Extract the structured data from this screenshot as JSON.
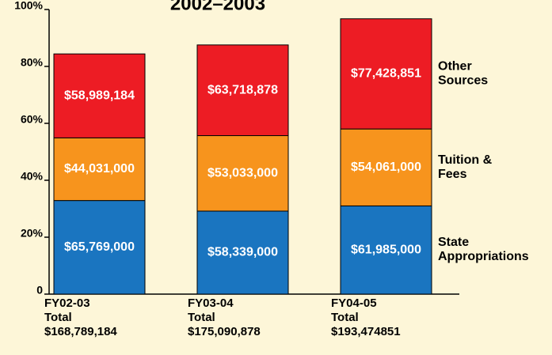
{
  "chart_data": {
    "type": "stacked_bar",
    "title": "2002–2003",
    "categories": [
      "FY02-03",
      "FY03-04",
      "FY04-05"
    ],
    "category_sublabels": [
      "Total",
      "Total",
      "Total"
    ],
    "total_labels": [
      "$168,789,184",
      "$175,090,878",
      "$193,474851"
    ],
    "series": [
      {
        "name": "State Appropriations",
        "color": "#1a75c0",
        "values": [
          65769000,
          58339000,
          61985000
        ],
        "value_labels": [
          "$65,769,000",
          "$58,339,000",
          "$61,985,000"
        ]
      },
      {
        "name": "Tuition & Fees",
        "color": "#f7941d",
        "values": [
          44031000,
          53033000,
          54061000
        ],
        "value_labels": [
          "$44,031,000",
          "$53,033,000",
          "$54,061,000"
        ]
      },
      {
        "name": "Other Sources",
        "color": "#ed1c24",
        "values": [
          58989184,
          63718878,
          77428851
        ],
        "value_labels": [
          "$58,989,184",
          "$63,718,878",
          "$77,428,851"
        ]
      }
    ],
    "ylim": [
      0,
      200000000
    ],
    "yticks": [
      0,
      {
        "value": 40000000,
        "label": "20%"
      },
      {
        "value": 80000000,
        "label": "40%"
      },
      {
        "value": 120000000,
        "label": "60%"
      },
      {
        "value": 160000000,
        "label": "80%"
      },
      {
        "value": 200000000,
        "label": "100%"
      }
    ]
  }
}
